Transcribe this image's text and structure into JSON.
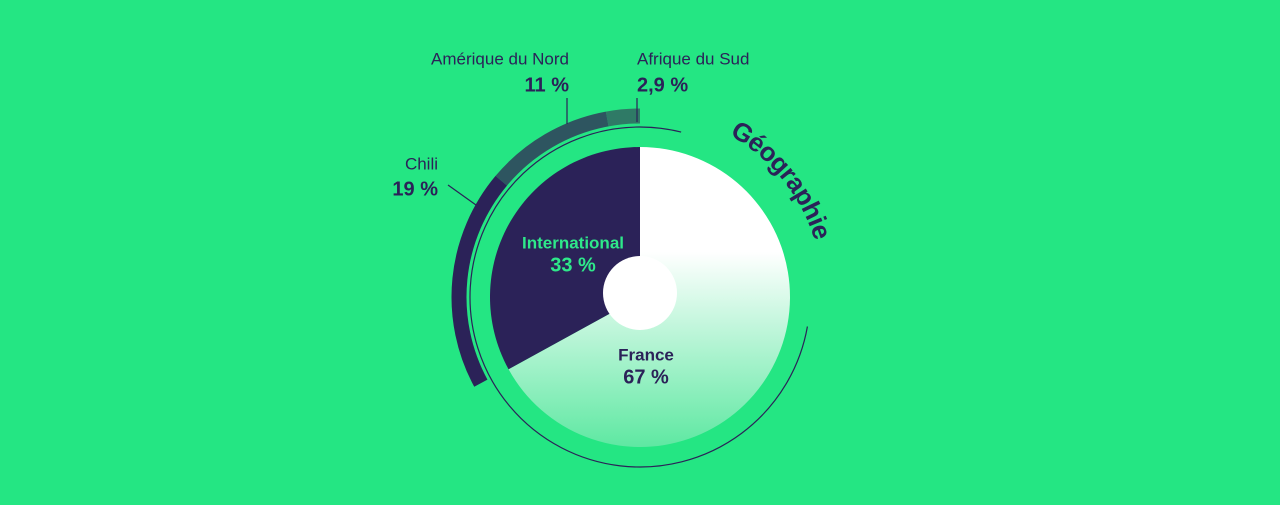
{
  "chart_data": [
    {
      "type": "pie",
      "title": "Géographie",
      "categories": [
        "France",
        "International"
      ],
      "values": [
        67,
        33
      ],
      "value_labels": [
        "67 %",
        "33 %"
      ],
      "colors": [
        "#ffffff",
        "#2b2258"
      ]
    },
    {
      "type": "arc",
      "categories": [
        "Afrique du Sud",
        "Amérique du Nord",
        "Chili"
      ],
      "values": [
        2.9,
        11,
        19
      ],
      "value_labels": [
        "2,9 %",
        "11 %",
        "19 %"
      ],
      "colors": [
        "#2f7a66",
        "#2e5560",
        "#2b2258"
      ]
    }
  ]
}
